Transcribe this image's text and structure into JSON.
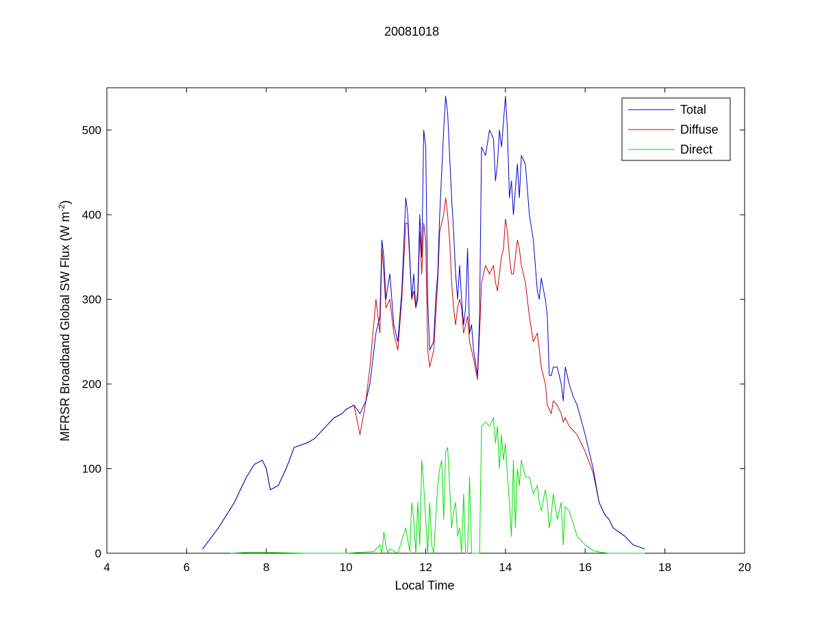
{
  "chart_data": {
    "type": "line",
    "title": "20081018",
    "xlabel": "Local Time",
    "ylabel_main": "MFRSR Broadband Global SW Flux (W m",
    "ylabel_sup": "-2",
    "ylabel_tail": ")",
    "xlim": [
      4,
      20
    ],
    "ylim": [
      0,
      550
    ],
    "xticks": [
      4,
      6,
      8,
      10,
      12,
      14,
      16,
      18,
      20
    ],
    "yticks": [
      0,
      100,
      200,
      300,
      400,
      500
    ],
    "grid": false,
    "legend_position": "top-right",
    "series": [
      {
        "name": "Total",
        "color": "#0000cc",
        "x": [
          6.4,
          6.8,
          7.2,
          7.5,
          7.7,
          7.9,
          8.0,
          8.1,
          8.3,
          8.5,
          8.7,
          9.0,
          9.2,
          9.5,
          9.7,
          9.9,
          10.0,
          10.2,
          10.35,
          10.5,
          10.6,
          10.75,
          10.85,
          10.9,
          10.95,
          11.0,
          11.1,
          11.2,
          11.3,
          11.4,
          11.5,
          11.55,
          11.65,
          11.7,
          11.75,
          11.8,
          11.85,
          11.9,
          11.95,
          12.0,
          12.05,
          12.1,
          12.2,
          12.25,
          12.3,
          12.35,
          12.45,
          12.5,
          12.55,
          12.6,
          12.65,
          12.7,
          12.75,
          12.8,
          12.85,
          12.9,
          12.95,
          13.0,
          13.05,
          13.1,
          13.15,
          13.2,
          13.3,
          13.35,
          13.4,
          13.5,
          13.6,
          13.7,
          13.75,
          13.8,
          13.85,
          13.9,
          13.95,
          14.0,
          14.05,
          14.1,
          14.15,
          14.2,
          14.3,
          14.35,
          14.4,
          14.5,
          14.6,
          14.7,
          14.8,
          14.85,
          14.9,
          15.0,
          15.05,
          15.1,
          15.15,
          15.2,
          15.3,
          15.4,
          15.45,
          15.5,
          15.6,
          15.7,
          15.8,
          16.0,
          16.2,
          16.35,
          16.5,
          16.6,
          16.7,
          17.0,
          17.2,
          17.5
        ],
        "y": [
          5,
          30,
          60,
          90,
          105,
          110,
          100,
          75,
          80,
          100,
          125,
          130,
          135,
          150,
          160,
          165,
          170,
          175,
          165,
          180,
          200,
          260,
          280,
          370,
          350,
          300,
          330,
          270,
          250,
          310,
          420,
          400,
          300,
          330,
          290,
          310,
          400,
          350,
          500,
          480,
          300,
          240,
          250,
          300,
          330,
          400,
          500,
          540,
          520,
          470,
          420,
          380,
          330,
          300,
          340,
          300,
          270,
          290,
          360,
          260,
          270,
          240,
          210,
          280,
          480,
          470,
          500,
          490,
          440,
          460,
          500,
          480,
          510,
          540,
          500,
          420,
          440,
          400,
          460,
          420,
          470,
          460,
          400,
          370,
          310,
          300,
          325,
          300,
          280,
          210,
          210,
          220,
          220,
          200,
          180,
          220,
          200,
          185,
          175,
          140,
          100,
          60,
          45,
          40,
          30,
          20,
          10,
          5
        ]
      },
      {
        "name": "Diffuse",
        "color": "#cc0000",
        "x": [
          6.4,
          6.8,
          7.2,
          7.5,
          7.7,
          7.9,
          8.0,
          8.1,
          8.3,
          8.5,
          8.7,
          9.0,
          9.2,
          9.5,
          9.7,
          9.9,
          10.0,
          10.2,
          10.35,
          10.5,
          10.6,
          10.75,
          10.85,
          10.9,
          10.95,
          11.0,
          11.1,
          11.2,
          11.3,
          11.4,
          11.5,
          11.55,
          11.65,
          11.7,
          11.75,
          11.8,
          11.85,
          11.9,
          11.95,
          12.0,
          12.05,
          12.1,
          12.2,
          12.25,
          12.3,
          12.35,
          12.45,
          12.5,
          12.55,
          12.6,
          12.65,
          12.7,
          12.75,
          12.8,
          12.85,
          12.9,
          12.95,
          13.0,
          13.05,
          13.1,
          13.15,
          13.2,
          13.3,
          13.35,
          13.4,
          13.5,
          13.6,
          13.7,
          13.75,
          13.8,
          13.85,
          13.9,
          13.95,
          14.0,
          14.05,
          14.1,
          14.15,
          14.2,
          14.3,
          14.35,
          14.4,
          14.5,
          14.6,
          14.7,
          14.8,
          14.85,
          14.9,
          15.0,
          15.05,
          15.1,
          15.15,
          15.2,
          15.3,
          15.4,
          15.45,
          15.5,
          15.6,
          15.7,
          15.8,
          16.0,
          16.2,
          16.35,
          16.5,
          16.6,
          16.7,
          17.0,
          17.2,
          17.5
        ],
        "y": [
          5,
          30,
          60,
          90,
          105,
          110,
          100,
          75,
          80,
          100,
          125,
          130,
          135,
          150,
          160,
          165,
          170,
          175,
          140,
          180,
          220,
          300,
          260,
          360,
          330,
          290,
          300,
          260,
          240,
          300,
          390,
          390,
          300,
          310,
          290,
          300,
          380,
          330,
          390,
          370,
          240,
          220,
          240,
          280,
          320,
          380,
          400,
          420,
          400,
          370,
          320,
          290,
          270,
          290,
          300,
          290,
          260,
          270,
          280,
          250,
          240,
          230,
          205,
          260,
          320,
          340,
          330,
          340,
          320,
          310,
          330,
          350,
          360,
          395,
          380,
          350,
          330,
          330,
          370,
          360,
          340,
          320,
          280,
          250,
          260,
          240,
          220,
          200,
          175,
          170,
          165,
          180,
          175,
          165,
          155,
          160,
          150,
          145,
          140,
          120,
          95,
          60,
          45,
          40,
          30,
          20,
          10,
          5
        ]
      },
      {
        "name": "Direct",
        "color": "#00dd00",
        "x": [
          7.1,
          7.5,
          8.0,
          9.0,
          10.0,
          10.7,
          10.85,
          10.9,
          10.95,
          11.0,
          11.05,
          11.1,
          11.3,
          11.4,
          11.5,
          11.6,
          11.65,
          11.7,
          11.75,
          11.8,
          11.85,
          11.9,
          11.95,
          12.0,
          12.05,
          12.1,
          12.15,
          12.2,
          12.3,
          12.35,
          12.4,
          12.45,
          12.5,
          12.55,
          12.6,
          12.65,
          12.7,
          12.75,
          12.8,
          12.85,
          12.9,
          12.95,
          13.0,
          13.05,
          13.1,
          13.15,
          13.2,
          13.3,
          13.35,
          13.4,
          13.5,
          13.6,
          13.7,
          13.75,
          13.8,
          13.85,
          13.9,
          13.95,
          14.0,
          14.05,
          14.1,
          14.15,
          14.2,
          14.25,
          14.3,
          14.35,
          14.4,
          14.5,
          14.6,
          14.7,
          14.8,
          14.85,
          14.9,
          15.0,
          15.05,
          15.1,
          15.15,
          15.2,
          15.3,
          15.4,
          15.45,
          15.5,
          15.6,
          15.7,
          15.8,
          16.0,
          16.2,
          16.4,
          16.6,
          17.0,
          17.5
        ],
        "y": [
          0,
          1,
          1,
          0,
          0,
          2,
          10,
          0,
          25,
          10,
          0,
          5,
          0,
          15,
          30,
          2,
          60,
          40,
          0,
          60,
          10,
          110,
          80,
          40,
          0,
          60,
          10,
          0,
          80,
          100,
          110,
          40,
          120,
          125,
          80,
          30,
          50,
          60,
          20,
          30,
          0,
          70,
          0,
          0,
          90,
          0,
          0,
          0,
          0,
          150,
          155,
          150,
          160,
          130,
          150,
          100,
          140,
          110,
          130,
          90,
          60,
          20,
          110,
          30,
          100,
          80,
          110,
          90,
          90,
          70,
          80,
          60,
          50,
          75,
          60,
          30,
          45,
          70,
          40,
          60,
          10,
          55,
          50,
          35,
          20,
          10,
          3,
          1,
          0,
          0,
          0
        ]
      }
    ]
  }
}
